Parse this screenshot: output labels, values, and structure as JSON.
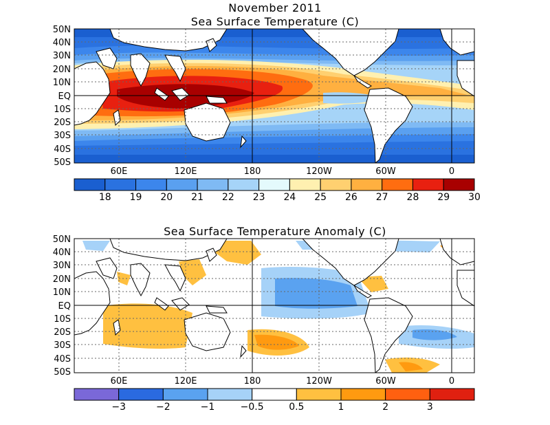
{
  "top_panel": {
    "title_line1": "November 2011",
    "title_line2": "Sea Surface Temperature (C)",
    "lat_labels": [
      "50N",
      "40N",
      "30N",
      "20N",
      "10N",
      "EQ",
      "10S",
      "20S",
      "30S",
      "40S",
      "50S"
    ],
    "lon_labels": [
      "60E",
      "120E",
      "180",
      "120W",
      "60W",
      "0"
    ],
    "colorbar": {
      "colors": [
        "#1a5fd0",
        "#2a72e0",
        "#3c86ec",
        "#5aa0f0",
        "#7fbaf4",
        "#a6d4f8",
        "#e4fafc",
        "#fff0b0",
        "#ffd070",
        "#ffb040",
        "#ff6d10",
        "#e82010",
        "#a80000"
      ],
      "labels": [
        "18",
        "19",
        "20",
        "21",
        "22",
        "23",
        "24",
        "25",
        "26",
        "27",
        "28",
        "29",
        "30"
      ]
    }
  },
  "bottom_panel": {
    "title": "Sea Surface Temperature Anomaly (C)",
    "lat_labels": [
      "50N",
      "40N",
      "30N",
      "20N",
      "10N",
      "EQ",
      "10S",
      "20S",
      "30S",
      "40S",
      "50S"
    ],
    "lon_labels": [
      "60E",
      "120E",
      "180",
      "120W",
      "60W",
      "0"
    ],
    "colorbar": {
      "colors": [
        "#7a68d8",
        "#2a6ae0",
        "#5aa2f0",
        "#a6d2f8",
        "#ffffff",
        "#ffc040",
        "#ff9a10",
        "#ff6010",
        "#e02010"
      ],
      "labels": [
        "−3",
        "−2",
        "−1",
        "−0.5",
        "0.5",
        "1",
        "2",
        "3"
      ]
    }
  }
}
